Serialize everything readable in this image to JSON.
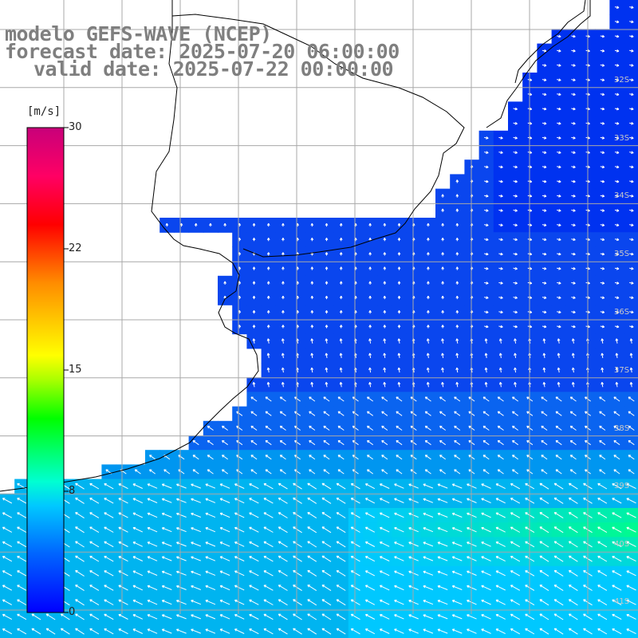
{
  "header": {
    "line1": "modelo GEFS-WAVE (NCEP)",
    "line2": "forecast date: 2025-07-20 06:00:00",
    "line3": "valid date: 2025-07-22 00:00:00"
  },
  "colorbar": {
    "unit": "[m/s]",
    "ticks": [
      "30",
      "22",
      "15",
      "8",
      "0"
    ],
    "colors": [
      "#0000ff",
      "#0064ff",
      "#00c8ff",
      "#00ffd2",
      "#00ff00",
      "#aaff00",
      "#ffff00",
      "#ff8c00",
      "#ff0000",
      "#ff0064",
      "#c8007a"
    ]
  },
  "lat_labels": [
    "32S",
    "33S",
    "34S",
    "35S",
    "36S",
    "37S",
    "38S",
    "39S",
    "40S",
    "41S"
  ],
  "colors": {
    "land": "#ffffff",
    "grid": "#a8a8a8",
    "coast": "#000000",
    "arrows": "#ffffff",
    "header_text": "#7f7f7f"
  }
}
